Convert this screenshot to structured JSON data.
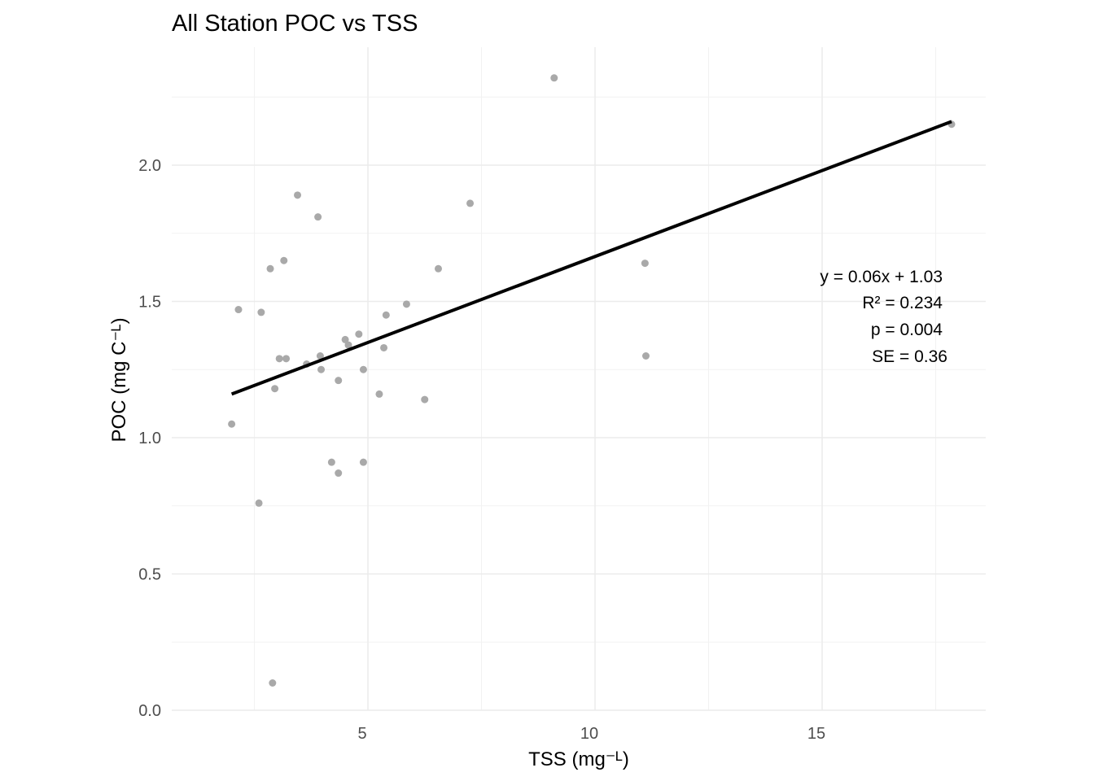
{
  "chart_data": {
    "type": "scatter",
    "title": "All Station POC vs TSS",
    "xlabel": "TSS (mg⁻ᴸ)",
    "ylabel": "POC (mg C⁻ᴸ)",
    "xlim": [
      1.2,
      19.1
    ],
    "ylim": [
      0.0,
      2.35
    ],
    "x_ticks": [
      5,
      10,
      15
    ],
    "x_tick_labels": [
      "5",
      "10",
      "15"
    ],
    "x_minor_ticks": [
      2.5,
      7.5,
      12.5,
      17.5
    ],
    "y_ticks": [
      0.0,
      0.5,
      1.0,
      1.5,
      2.0
    ],
    "y_tick_labels": [
      "0.0",
      "0.5",
      "1.0",
      "1.5",
      "2.0"
    ],
    "y_minor_ticks": [
      0.25,
      0.75,
      1.25,
      1.75,
      2.25
    ],
    "grid": true,
    "point_color": "#a9a9a9",
    "line_color": "#000000",
    "points": [
      {
        "x": 2.0,
        "y": 1.05
      },
      {
        "x": 2.15,
        "y": 1.47
      },
      {
        "x": 2.6,
        "y": 0.76
      },
      {
        "x": 2.65,
        "y": 1.46
      },
      {
        "x": 2.85,
        "y": 1.62
      },
      {
        "x": 2.9,
        "y": 0.1
      },
      {
        "x": 2.95,
        "y": 1.18
      },
      {
        "x": 3.05,
        "y": 1.29
      },
      {
        "x": 3.15,
        "y": 1.65
      },
      {
        "x": 3.2,
        "y": 1.29
      },
      {
        "x": 3.45,
        "y": 1.89
      },
      {
        "x": 3.65,
        "y": 1.27
      },
      {
        "x": 3.9,
        "y": 1.81
      },
      {
        "x": 3.95,
        "y": 1.3
      },
      {
        "x": 3.97,
        "y": 1.25
      },
      {
        "x": 4.2,
        "y": 0.91
      },
      {
        "x": 4.35,
        "y": 0.87
      },
      {
        "x": 4.35,
        "y": 1.21
      },
      {
        "x": 4.5,
        "y": 1.36
      },
      {
        "x": 4.57,
        "y": 1.34
      },
      {
        "x": 4.8,
        "y": 1.38
      },
      {
        "x": 4.9,
        "y": 1.25
      },
      {
        "x": 4.9,
        "y": 0.91
      },
      {
        "x": 5.25,
        "y": 1.16
      },
      {
        "x": 5.35,
        "y": 1.33
      },
      {
        "x": 5.4,
        "y": 1.45
      },
      {
        "x": 5.85,
        "y": 1.49
      },
      {
        "x": 6.25,
        "y": 1.14
      },
      {
        "x": 6.55,
        "y": 1.62
      },
      {
        "x": 7.25,
        "y": 1.86
      },
      {
        "x": 9.1,
        "y": 2.32
      },
      {
        "x": 11.1,
        "y": 1.64
      },
      {
        "x": 11.12,
        "y": 1.3
      },
      {
        "x": 17.85,
        "y": 2.15
      }
    ],
    "fit_line": {
      "x": [
        2.0,
        17.85
      ],
      "y": [
        1.16,
        2.16
      ]
    },
    "annotations": [
      "y = 0.06x + 1.03",
      "R² = 0.234",
      "p = 0.004",
      "SE = 0.36"
    ]
  }
}
